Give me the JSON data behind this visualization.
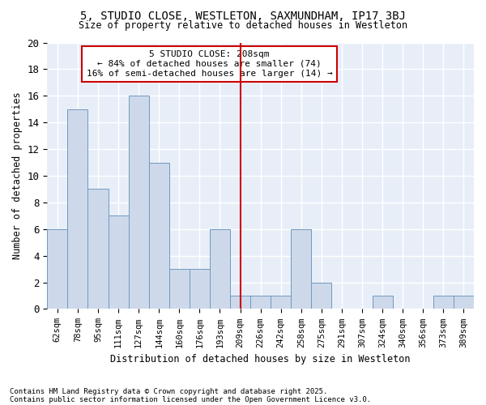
{
  "title_line1": "5, STUDIO CLOSE, WESTLETON, SAXMUNDHAM, IP17 3BJ",
  "title_line2": "Size of property relative to detached houses in Westleton",
  "xlabel": "Distribution of detached houses by size in Westleton",
  "ylabel": "Number of detached properties",
  "footnote1": "Contains HM Land Registry data © Crown copyright and database right 2025.",
  "footnote2": "Contains public sector information licensed under the Open Government Licence v3.0.",
  "annotation_line1": "5 STUDIO CLOSE: 208sqm",
  "annotation_line2": "← 84% of detached houses are smaller (74)",
  "annotation_line3": "16% of semi-detached houses are larger (14) →",
  "bar_color": "#cdd9ea",
  "bar_edge_color": "#7098c0",
  "vline_color": "#cc0000",
  "annotation_box_edge": "#cc0000",
  "fig_background_color": "#ffffff",
  "plot_background_color": "#e8eef8",
  "categories": [
    "62sqm",
    "78sqm",
    "95sqm",
    "111sqm",
    "127sqm",
    "144sqm",
    "160sqm",
    "176sqm",
    "193sqm",
    "209sqm",
    "226sqm",
    "242sqm",
    "258sqm",
    "275sqm",
    "291sqm",
    "307sqm",
    "324sqm",
    "340sqm",
    "356sqm",
    "373sqm",
    "389sqm"
  ],
  "values": [
    6,
    15,
    9,
    7,
    16,
    11,
    3,
    3,
    6,
    1,
    1,
    1,
    6,
    2,
    0,
    0,
    1,
    0,
    0,
    1,
    1
  ],
  "vline_position": 9,
  "ylim": [
    0,
    20
  ],
  "yticks": [
    0,
    2,
    4,
    6,
    8,
    10,
    12,
    14,
    16,
    18,
    20
  ]
}
